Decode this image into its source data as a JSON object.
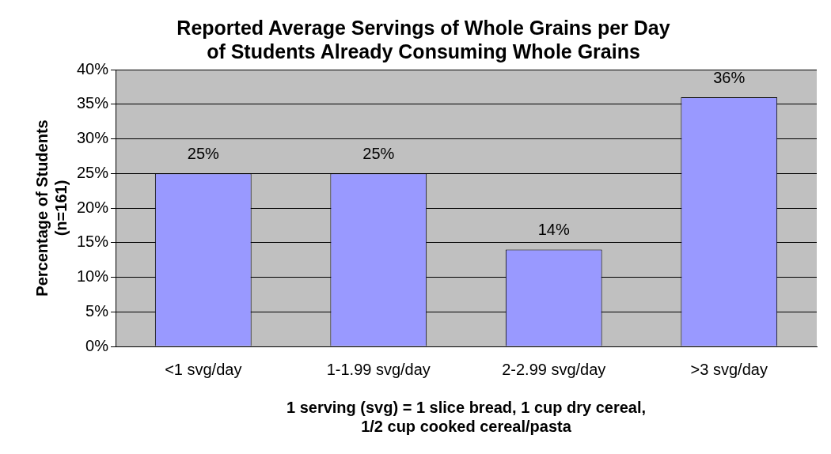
{
  "chart_data": {
    "type": "bar",
    "title": "Reported Average Servings of Whole Grains per Day\nof Students Already Consuming Whole Grains",
    "ylabel": "Percentage of Students\n(n=161)",
    "xlabel": "1 serving (svg) = 1 slice bread, 1 cup dry cereal,\n1/2 cup cooked cereal/pasta",
    "categories": [
      "<1 svg/day",
      "1-1.99 svg/day",
      "2-2.99 svg/day",
      ">3 svg/day"
    ],
    "values": [
      25,
      25,
      14,
      36
    ],
    "value_labels": [
      "25%",
      "25%",
      "14%",
      "36%"
    ],
    "color": "#9999ff",
    "ylim": [
      0,
      40
    ],
    "yticks": [
      {
        "value": 0,
        "label": "0%"
      },
      {
        "value": 5,
        "label": "5%"
      },
      {
        "value": 10,
        "label": "10%"
      },
      {
        "value": 15,
        "label": "15%"
      },
      {
        "value": 20,
        "label": "20%"
      },
      {
        "value": 25,
        "label": "25%"
      },
      {
        "value": 30,
        "label": "30%"
      },
      {
        "value": 35,
        "label": "35%"
      },
      {
        "value": 40,
        "label": "40%"
      }
    ],
    "grid": "y",
    "legend": false
  }
}
